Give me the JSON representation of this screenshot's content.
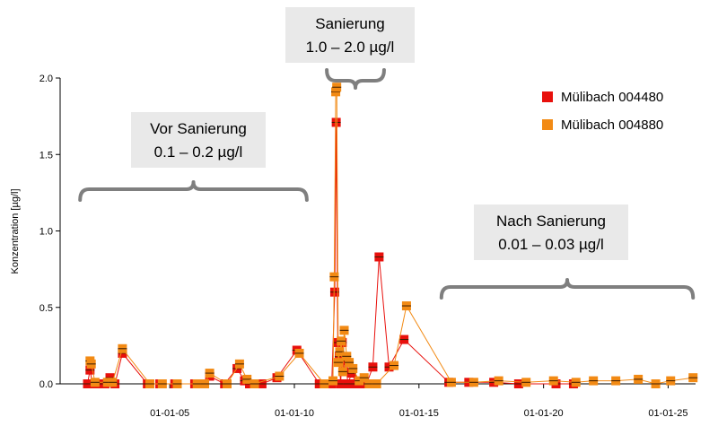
{
  "chart_data": {
    "type": "line",
    "ylabel": "Konzentration [µg/l]",
    "xlabel": "",
    "ylim": [
      0,
      2.0
    ],
    "yticks": [
      "0.0",
      "0.5",
      "1.0",
      "1.5",
      "2.0"
    ],
    "xticks": [
      "01-01-05",
      "01-01-10",
      "01-01-15",
      "01-01-20",
      "01-01-25"
    ],
    "xtick_years": [
      2005,
      2010,
      2015,
      2020,
      2025
    ],
    "xlim_years": [
      2000.6,
      2026.1
    ],
    "grid": false,
    "legend_position": "top-right",
    "series": [
      {
        "name": "Mülibach 004480",
        "color": "#e8100c",
        "points": [
          [
            2001.7,
            0.0
          ],
          [
            2001.8,
            0.09
          ],
          [
            2001.9,
            0.0
          ],
          [
            2002.2,
            0.0
          ],
          [
            2002.4,
            0.0
          ],
          [
            2002.6,
            0.04
          ],
          [
            2002.8,
            0.0
          ],
          [
            2003.1,
            0.2
          ],
          [
            2004.1,
            0.0
          ],
          [
            2004.6,
            0.0
          ],
          [
            2005.2,
            0.0
          ],
          [
            2006.0,
            0.0
          ],
          [
            2006.3,
            0.0
          ],
          [
            2006.6,
            0.05
          ],
          [
            2007.2,
            0.0
          ],
          [
            2007.7,
            0.1
          ],
          [
            2008.0,
            0.02
          ],
          [
            2008.2,
            0.0
          ],
          [
            2008.7,
            0.0
          ],
          [
            2009.3,
            0.04
          ],
          [
            2010.1,
            0.22
          ],
          [
            2011.0,
            0.0
          ],
          [
            2011.5,
            0.0
          ],
          [
            2011.62,
            0.6
          ],
          [
            2011.68,
            1.71
          ],
          [
            2011.74,
            0.27
          ],
          [
            2011.8,
            0.18
          ],
          [
            2011.86,
            0.0
          ],
          [
            2011.92,
            0.27
          ],
          [
            2011.98,
            0.08
          ],
          [
            2012.05,
            0.15
          ],
          [
            2012.15,
            0.0
          ],
          [
            2012.3,
            0.07
          ],
          [
            2012.5,
            0.0
          ],
          [
            2012.7,
            0.0
          ],
          [
            2012.9,
            0.0
          ],
          [
            2013.15,
            0.11
          ],
          [
            2013.4,
            0.83
          ],
          [
            2013.8,
            0.11
          ],
          [
            2014.4,
            0.29
          ],
          [
            2016.2,
            0.01
          ],
          [
            2017.0,
            0.01
          ],
          [
            2018.0,
            0.01
          ],
          [
            2019.0,
            0.0
          ],
          [
            2020.5,
            0.0
          ],
          [
            2021.2,
            0.0
          ]
        ]
      },
      {
        "name": "Mülibach 004880",
        "color": "#f28a14",
        "points": [
          [
            2001.8,
            0.15
          ],
          [
            2001.85,
            0.13
          ],
          [
            2002.0,
            0.01
          ],
          [
            2002.5,
            0.01
          ],
          [
            2002.7,
            0.01
          ],
          [
            2003.1,
            0.23
          ],
          [
            2004.2,
            0.0
          ],
          [
            2004.7,
            0.0
          ],
          [
            2005.3,
            0.0
          ],
          [
            2006.1,
            0.0
          ],
          [
            2006.4,
            0.0
          ],
          [
            2006.6,
            0.07
          ],
          [
            2007.3,
            0.0
          ],
          [
            2007.8,
            0.13
          ],
          [
            2008.1,
            0.03
          ],
          [
            2008.4,
            0.0
          ],
          [
            2009.4,
            0.05
          ],
          [
            2010.2,
            0.2
          ],
          [
            2011.2,
            0.0
          ],
          [
            2011.55,
            0.02
          ],
          [
            2011.6,
            0.7
          ],
          [
            2011.66,
            1.91
          ],
          [
            2011.7,
            1.94
          ],
          [
            2011.76,
            0.14
          ],
          [
            2011.82,
            0.21
          ],
          [
            2011.88,
            0.28
          ],
          [
            2011.94,
            0.08
          ],
          [
            2012.0,
            0.35
          ],
          [
            2012.1,
            0.18
          ],
          [
            2012.2,
            0.14
          ],
          [
            2012.35,
            0.1
          ],
          [
            2012.6,
            0.02
          ],
          [
            2012.8,
            0.04
          ],
          [
            2013.0,
            0.0
          ],
          [
            2013.3,
            0.0
          ],
          [
            2014.0,
            0.12
          ],
          [
            2014.5,
            0.51
          ],
          [
            2016.3,
            0.01
          ],
          [
            2017.2,
            0.01
          ],
          [
            2018.2,
            0.02
          ],
          [
            2019.3,
            0.01
          ],
          [
            2020.4,
            0.02
          ],
          [
            2021.3,
            0.01
          ],
          [
            2022.0,
            0.02
          ],
          [
            2022.9,
            0.02
          ],
          [
            2023.8,
            0.03
          ],
          [
            2024.5,
            0.0
          ],
          [
            2025.1,
            0.02
          ],
          [
            2026.0,
            0.04
          ]
        ]
      }
    ],
    "annotations": [
      {
        "line1": "Vor Sanierung",
        "line2": "0.1 – 0.2 µg/l",
        "from_year": 2001.4,
        "to_year": 2010.5
      },
      {
        "line1": "Sanierung",
        "line2": "1.0 – 2.0 µg/l",
        "from_year": 2011.3,
        "to_year": 2013.6
      },
      {
        "line1": "Nach Sanierung",
        "line2": "0.01 – 0.03 µg/l",
        "from_year": 2015.9,
        "to_year": 2026.0
      }
    ]
  }
}
